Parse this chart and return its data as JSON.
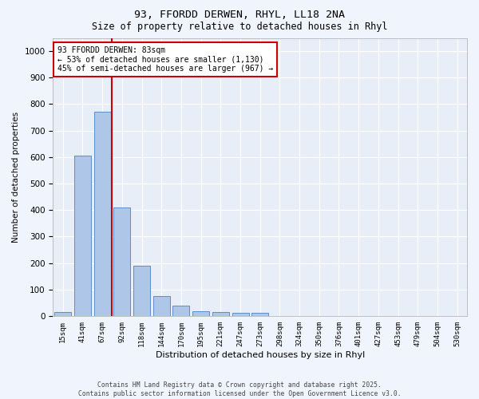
{
  "title_line1": "93, FFORDD DERWEN, RHYL, LL18 2NA",
  "title_line2": "Size of property relative to detached houses in Rhyl",
  "xlabel": "Distribution of detached houses by size in Rhyl",
  "ylabel": "Number of detached properties",
  "categories": [
    "15sqm",
    "41sqm",
    "67sqm",
    "92sqm",
    "118sqm",
    "144sqm",
    "170sqm",
    "195sqm",
    "221sqm",
    "247sqm",
    "273sqm",
    "298sqm",
    "324sqm",
    "350sqm",
    "376sqm",
    "401sqm",
    "427sqm",
    "453sqm",
    "479sqm",
    "504sqm",
    "530sqm"
  ],
  "values": [
    14,
    605,
    770,
    410,
    190,
    75,
    40,
    18,
    15,
    12,
    12,
    0,
    0,
    0,
    0,
    0,
    0,
    0,
    0,
    0,
    0
  ],
  "bar_color": "#aec6e8",
  "bar_edge_color": "#5b8fc9",
  "background_color": "#e8eef8",
  "grid_color": "#ffffff",
  "vline_index": 2.5,
  "vline_color": "#cc0000",
  "annotation_line1": "93 FFORDD DERWEN: 83sqm",
  "annotation_line2": "← 53% of detached houses are smaller (1,130)",
  "annotation_line3": "45% of semi-detached houses are larger (967) →",
  "annotation_box_color": "#cc0000",
  "ylim": [
    0,
    1050
  ],
  "yticks": [
    0,
    100,
    200,
    300,
    400,
    500,
    600,
    700,
    800,
    900,
    1000
  ],
  "footer_line1": "Contains HM Land Registry data © Crown copyright and database right 2025.",
  "footer_line2": "Contains public sector information licensed under the Open Government Licence v3.0.",
  "fig_facecolor": "#f0f4fc"
}
